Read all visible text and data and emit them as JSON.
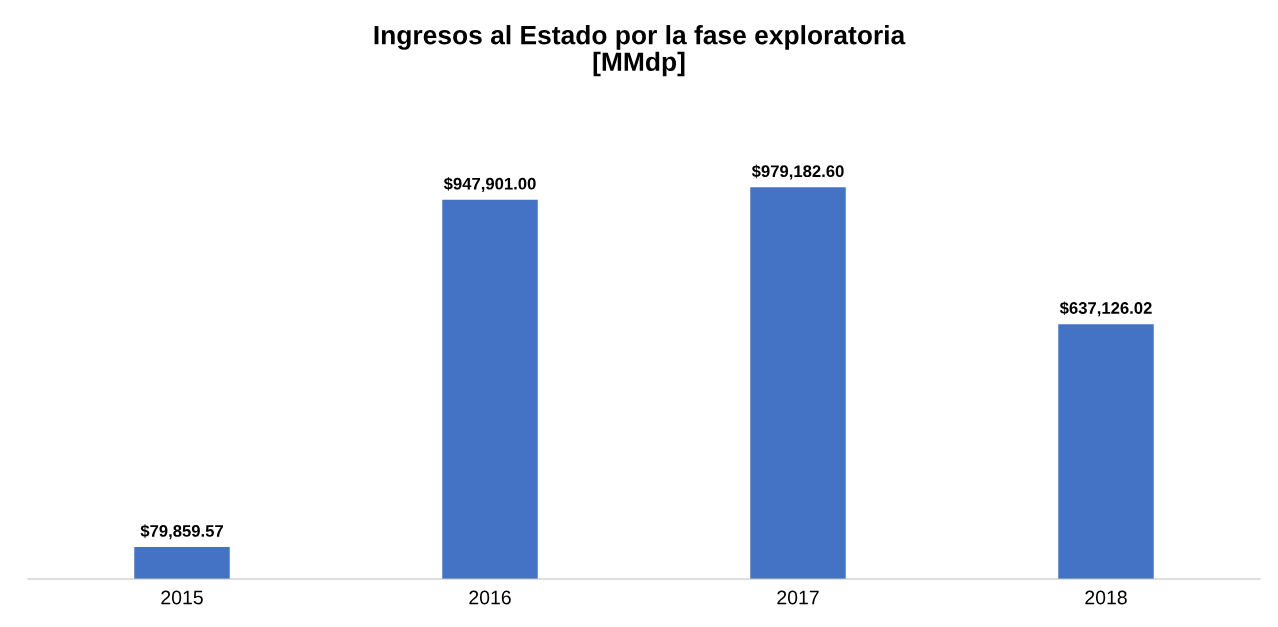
{
  "chart_data": {
    "type": "bar",
    "title": "Ingresos al Estado por la fase exploratoria\n[MMdp]",
    "categories": [
      "2015",
      "2016",
      "2017",
      "2018"
    ],
    "values": [
      79859.57,
      947901.0,
      979182.6,
      637126.02
    ],
    "value_labels": [
      "$79,859.57",
      "$947,901.00",
      "$979,182.60",
      "$637,126.02"
    ],
    "color": "#4472c4",
    "grid": false,
    "legend": false
  }
}
